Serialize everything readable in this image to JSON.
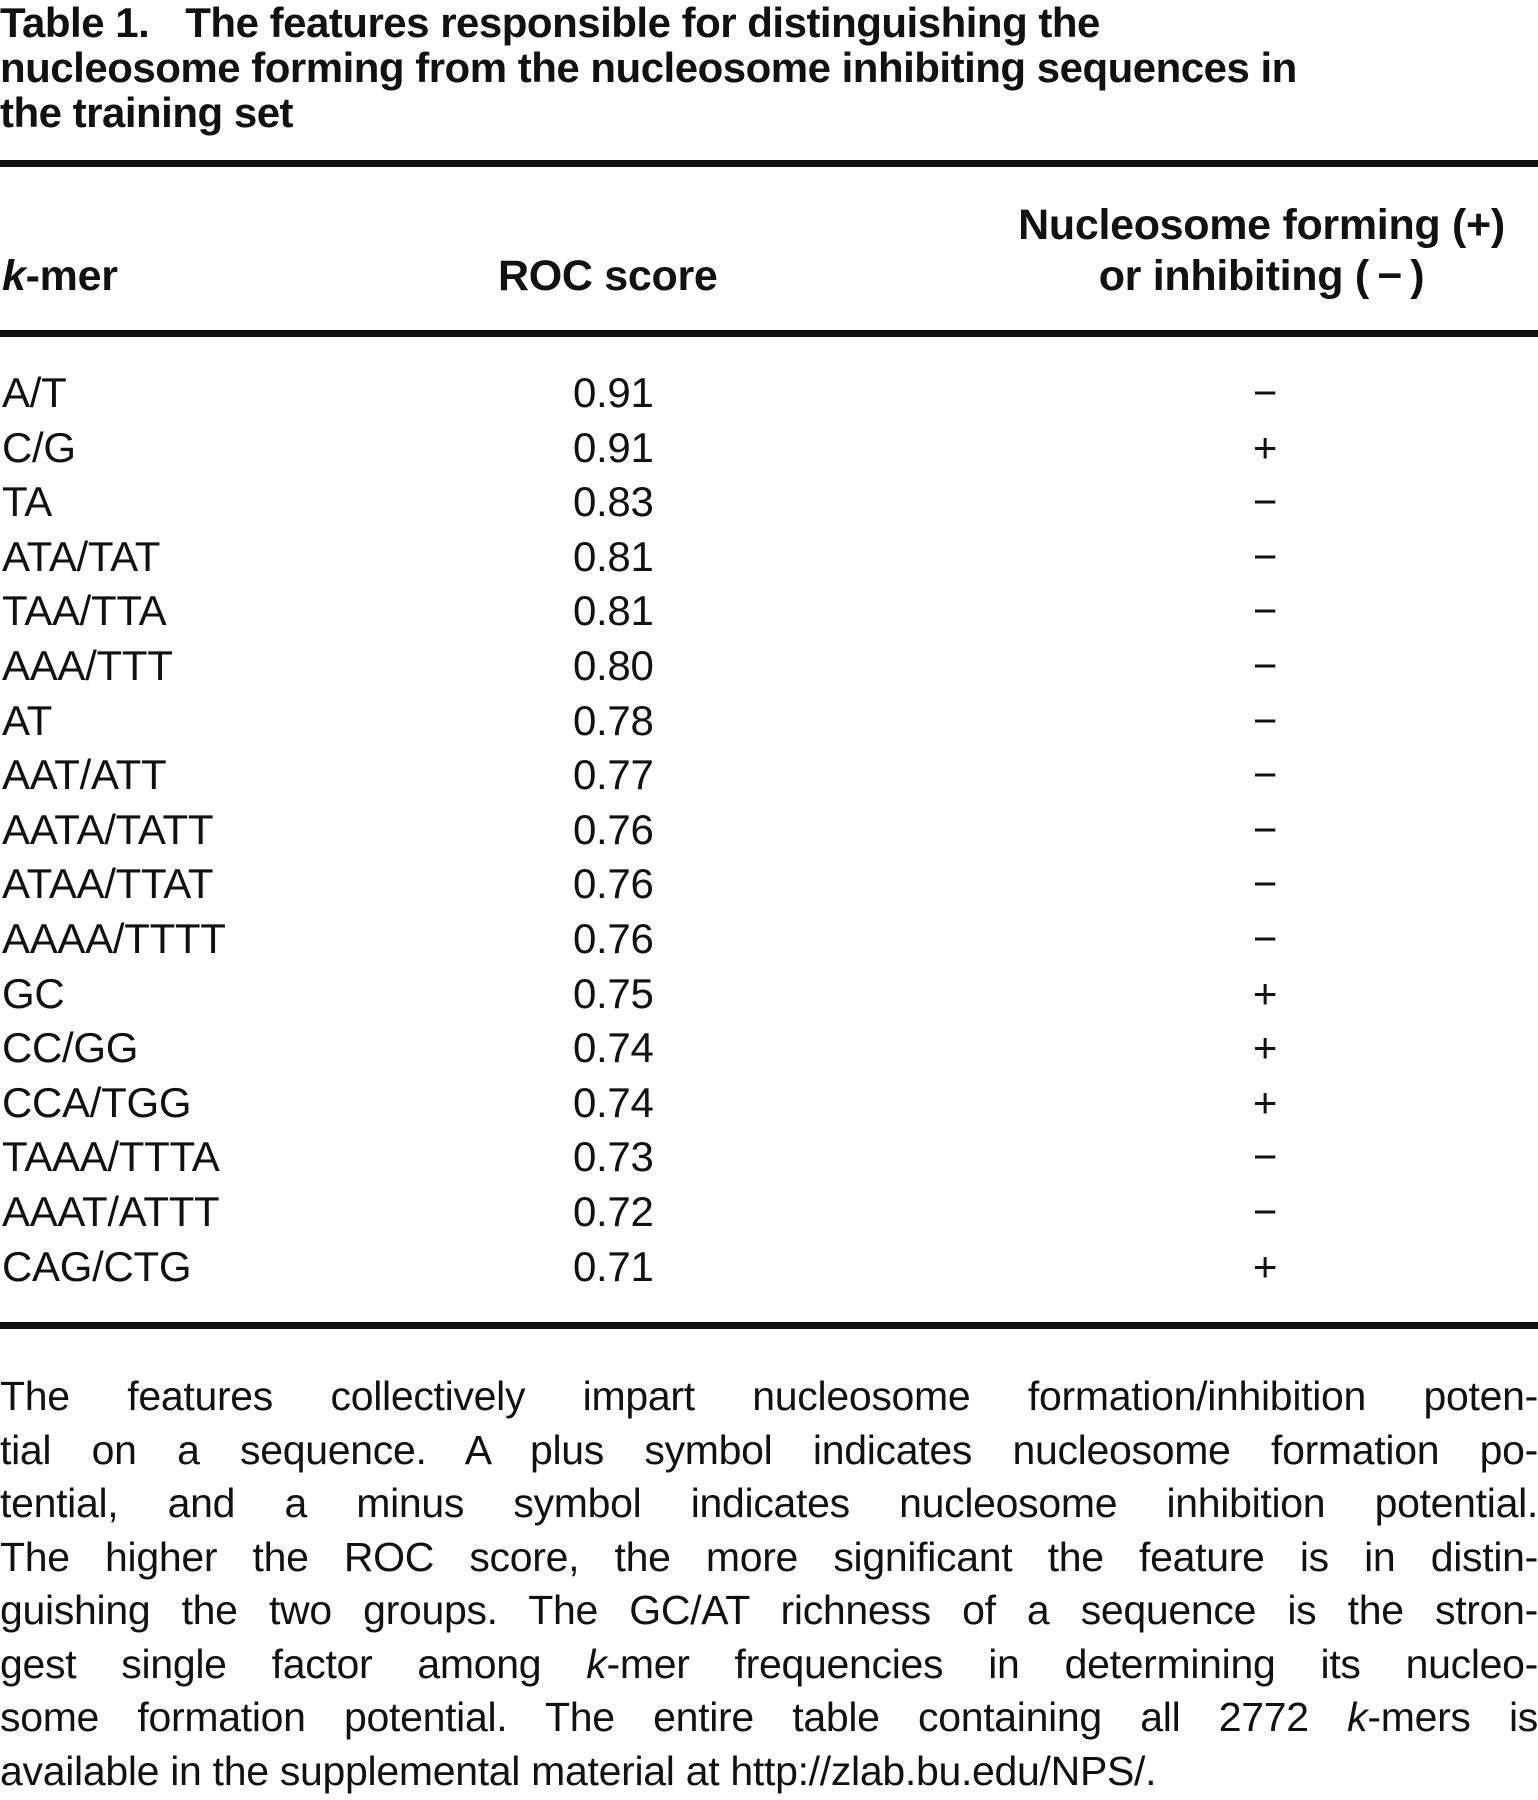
{
  "page": {
    "background_color": "#ffffff",
    "text_color": "#111111",
    "rule_color": "#111111"
  },
  "title": {
    "label": "Table 1.",
    "line1_rest": "The features responsible for distinguishing the",
    "line2": "nucleosome forming from the nucleosome inhibiting sequences in",
    "line3": "the training set"
  },
  "columns": {
    "kmer_italic": "k",
    "kmer_rest": "-mer",
    "roc": "ROC score",
    "sign_line1": "Nucleosome forming (+)",
    "sign_line2": "or inhibiting ( − )"
  },
  "rows": [
    {
      "kmer": "A/T",
      "roc": "0.91",
      "sign": "−"
    },
    {
      "kmer": "C/G",
      "roc": "0.91",
      "sign": "+"
    },
    {
      "kmer": "TA",
      "roc": "0.83",
      "sign": "−"
    },
    {
      "kmer": "ATA/TAT",
      "roc": "0.81",
      "sign": "−"
    },
    {
      "kmer": "TAA/TTA",
      "roc": "0.81",
      "sign": "−"
    },
    {
      "kmer": "AAA/TTT",
      "roc": "0.80",
      "sign": "−"
    },
    {
      "kmer": "AT",
      "roc": "0.78",
      "sign": "−"
    },
    {
      "kmer": "AAT/ATT",
      "roc": "0.77",
      "sign": "−"
    },
    {
      "kmer": "AATA/TATT",
      "roc": "0.76",
      "sign": "−"
    },
    {
      "kmer": "ATAA/TTAT",
      "roc": "0.76",
      "sign": "−"
    },
    {
      "kmer": "AAAA/TTTT",
      "roc": "0.76",
      "sign": "−"
    },
    {
      "kmer": "GC",
      "roc": "0.75",
      "sign": "+"
    },
    {
      "kmer": "CC/GG",
      "roc": "0.74",
      "sign": "+"
    },
    {
      "kmer": "CCA/TGG",
      "roc": "0.74",
      "sign": "+"
    },
    {
      "kmer": "TAAA/TTTA",
      "roc": "0.73",
      "sign": "−"
    },
    {
      "kmer": "AAAT/ATTT",
      "roc": "0.72",
      "sign": "−"
    },
    {
      "kmer": "CAG/CTG",
      "roc": "0.71",
      "sign": "+"
    }
  ],
  "footnote": {
    "lines": [
      [
        {
          "t": "The features collectively impart nucleosome formation/inhibition poten-"
        }
      ],
      [
        {
          "t": "tial on a sequence. A plus symbol indicates nucleosome formation po-"
        }
      ],
      [
        {
          "t": "tential, and a minus symbol indicates nucleosome inhibition potential."
        }
      ],
      [
        {
          "t": "The higher the ROC score, the more significant the feature is in distin-"
        }
      ],
      [
        {
          "t": "guishing the two groups. The GC/AT richness of a sequence is the stron-"
        }
      ],
      [
        {
          "t": "gest single factor among "
        },
        {
          "t": "k",
          "i": true
        },
        {
          "t": "-mer frequencies in determining its nucleo-"
        }
      ],
      [
        {
          "t": "some formation potential. The entire table containing all 2772 "
        },
        {
          "t": "k",
          "i": true
        },
        {
          "t": "-mers is"
        }
      ],
      [
        {
          "t": "available in the supplemental material at http://zlab.bu.edu/NPS/."
        }
      ]
    ]
  }
}
